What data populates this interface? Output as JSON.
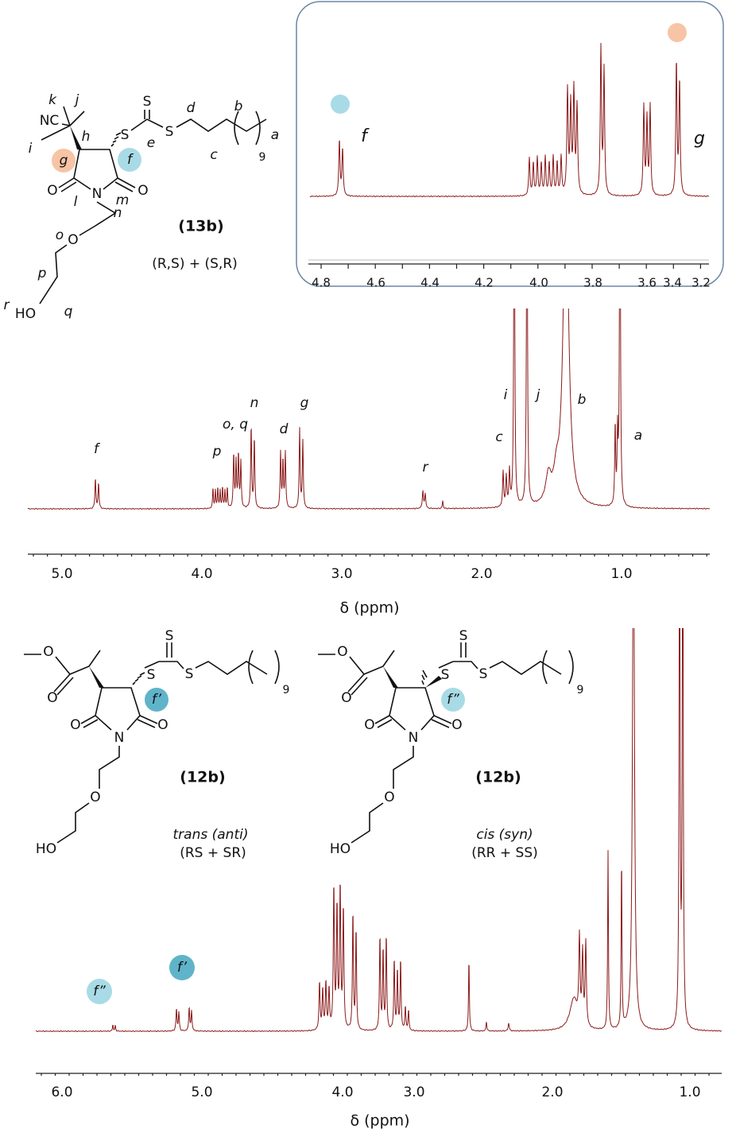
{
  "top": {
    "structure": {
      "atoms": [
        "NC",
        "S",
        "S",
        "S",
        "O",
        "N",
        "O",
        "O",
        "HO"
      ],
      "letters": [
        "k",
        "j",
        "h",
        "i",
        "g",
        "f",
        "e",
        "d",
        "b",
        "c",
        "a",
        "l",
        "m",
        "n",
        "o",
        "p",
        "q",
        "r"
      ],
      "repeat": "9",
      "name": "(13b)",
      "stereo": "(R,S) + (S,R)"
    },
    "peak_labels": [
      "f",
      "p",
      "o, q",
      "n",
      "d",
      "g",
      "r",
      "c",
      "i",
      "j",
      "b",
      "a"
    ],
    "axis_ticks": [
      "5.0",
      "4.0",
      "3.0",
      "2.0",
      "1.0"
    ],
    "axis_label": "δ (ppm)",
    "inset": {
      "peak_labels": [
        "f",
        "g"
      ],
      "axis_ticks": [
        "4.8",
        "4.6",
        "4.4",
        "4.2",
        "4.0",
        "3.8",
        "3.6",
        "3.4",
        "3.2"
      ]
    }
  },
  "bottom": {
    "structures": [
      {
        "atoms": [
          "O",
          "O",
          "S",
          "S",
          "S",
          "O",
          "N",
          "O",
          "O",
          "HO"
        ],
        "repeat": "9",
        "proton": "f’",
        "name": "(12b)",
        "isomer": "trans (anti)",
        "stereo": "(RS + SR)"
      },
      {
        "atoms": [
          "O",
          "O",
          "S",
          "S",
          "S",
          "O",
          "N",
          "O",
          "O",
          "HO"
        ],
        "repeat": "9",
        "proton": "f”",
        "name": "(12b)",
        "isomer": "cis (syn)",
        "stereo": "(RR + SS)"
      }
    ],
    "peak_labels": [
      "f”",
      "f’"
    ],
    "axis_ticks": [
      "6.0",
      "5.0",
      "4.0",
      "3.0",
      "2.0",
      "1.0"
    ],
    "axis_label": "δ (ppm)"
  }
}
